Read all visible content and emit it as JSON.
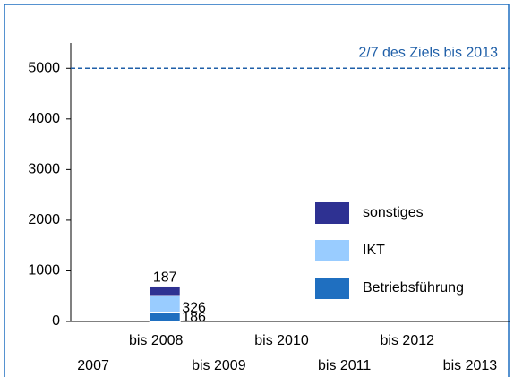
{
  "chart_data": {
    "type": "stacked_bar",
    "categories": [
      "2007",
      "bis 2008",
      "bis 2009",
      "bis 2010",
      "bis 2011",
      "bis 2012",
      "bis 2013"
    ],
    "series": [
      {
        "name": "Betriebsführung",
        "color": "#1f6fc0",
        "values": [
          null,
          186,
          null,
          null,
          null,
          null,
          null
        ]
      },
      {
        "name": "IKT",
        "color": "#99ccff",
        "values": [
          null,
          326,
          null,
          null,
          null,
          null,
          null
        ]
      },
      {
        "name": "sonstiges",
        "color": "#2e3192",
        "values": [
          null,
          187,
          null,
          null,
          null,
          null,
          null
        ]
      }
    ],
    "ylim": [
      0,
      5500
    ],
    "yticks": [
      0,
      1000,
      2000,
      3000,
      4000,
      5000
    ],
    "reference_line": {
      "value": 5000,
      "label": "2/7 des Ziels bis 2013",
      "color": "#1f5fa8"
    },
    "legend": "right"
  }
}
